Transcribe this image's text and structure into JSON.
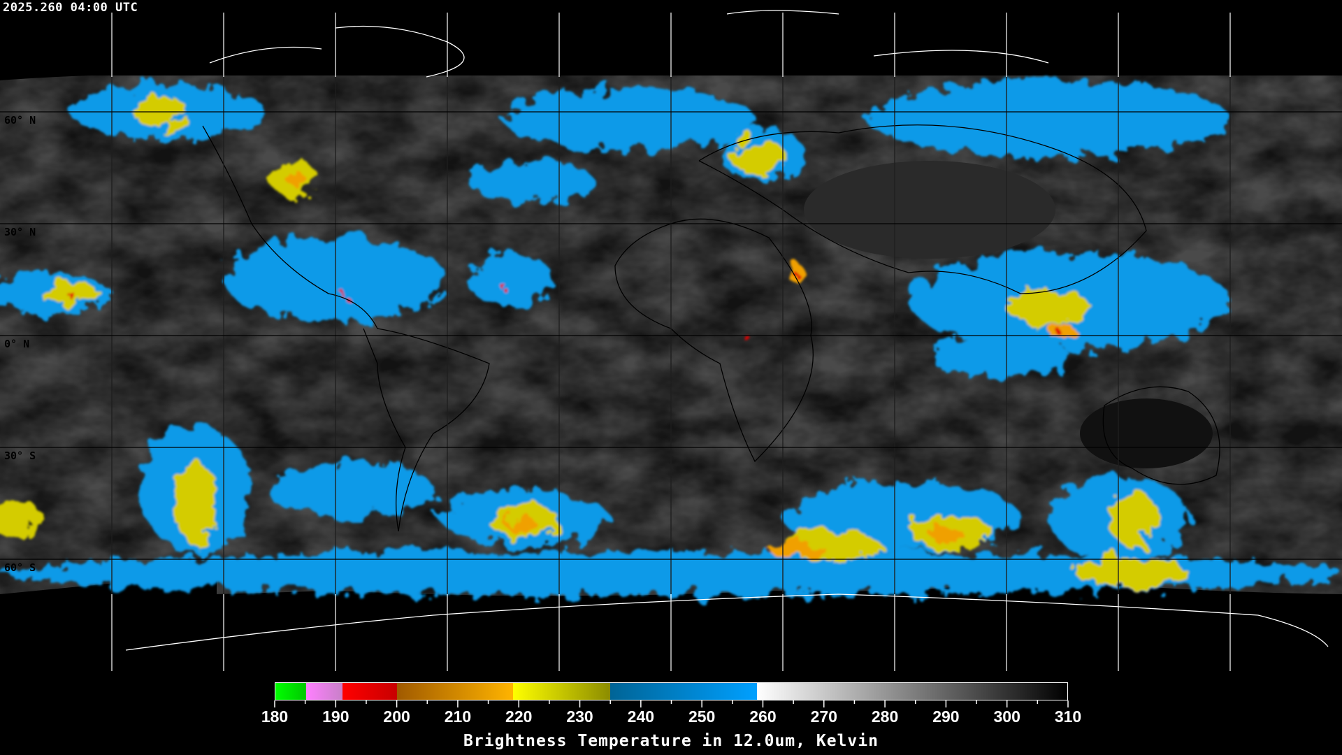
{
  "header": {
    "timestamp": "2025.260 04:00 UTC"
  },
  "map": {
    "projection": "equirectangular",
    "graticule_step_deg": 30,
    "lat_labels": [
      "60° N",
      "30° N",
      "0° N",
      "30° S",
      "60° S"
    ],
    "coast_color": "#000000",
    "polar_coast_color": "#ffffff"
  },
  "colorbar": {
    "title": "Brightness Temperature in 12.0um, Kelvin",
    "min": 180,
    "max": 310,
    "tick_labels": [
      "180",
      "190",
      "200",
      "210",
      "220",
      "230",
      "240",
      "250",
      "260",
      "270",
      "280",
      "290",
      "300",
      "310"
    ],
    "segments": [
      {
        "from": 180,
        "to": 185,
        "colors": [
          "#00ff00",
          "#00c800"
        ]
      },
      {
        "from": 185,
        "to": 191,
        "colors": [
          "#ff80ff",
          "#c880c8"
        ]
      },
      {
        "from": 191,
        "to": 200,
        "colors": [
          "#ff0000",
          "#c80000"
        ]
      },
      {
        "from": 200,
        "to": 219,
        "colors": [
          "#a05a00",
          "#ffb400"
        ]
      },
      {
        "from": 219,
        "to": 235,
        "colors": [
          "#ffff00",
          "#8c8c00"
        ]
      },
      {
        "from": 235,
        "to": 259,
        "colors": [
          "#006496",
          "#00a0ff"
        ]
      },
      {
        "from": 259,
        "to": 310,
        "colors": [
          "#ffffff",
          "#000000"
        ]
      }
    ]
  }
}
